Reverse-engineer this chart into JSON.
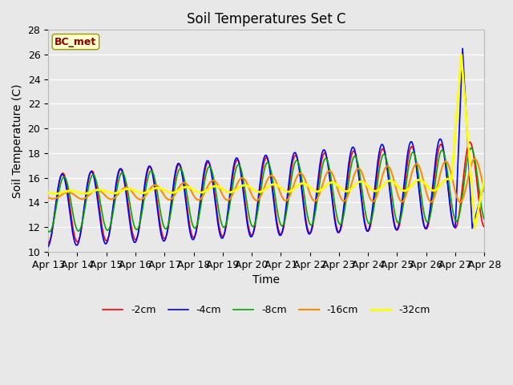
{
  "title": "Soil Temperatures Set C",
  "xlabel": "Time",
  "ylabel": "Soil Temperature (C)",
  "ylim": [
    10,
    28
  ],
  "xlim": [
    0,
    360
  ],
  "annotation": "BC_met",
  "annotation_color": "#8B0000",
  "annotation_bg": "#FFFFCC",
  "background_color": "#E8E8E8",
  "plot_bg": "#E8E8E8",
  "grid_color": "#FFFFFF",
  "series": [
    "-2cm",
    "-4cm",
    "-8cm",
    "-16cm",
    "-32cm"
  ],
  "colors": [
    "#FF0000",
    "#0000FF",
    "#00AA00",
    "#FF8C00",
    "#FFFF00"
  ],
  "linewidths": [
    1.2,
    1.2,
    1.2,
    1.5,
    2.0
  ],
  "xtick_labels": [
    "Apr 13",
    "Apr 14",
    "Apr 15",
    "Apr 16",
    "Apr 17",
    "Apr 18",
    "Apr 19",
    "Apr 20",
    "Apr 21",
    "Apr 22",
    "Apr 23",
    "Apr 24",
    "Apr 25",
    "Apr 26",
    "Apr 27",
    "Apr 28"
  ],
  "xtick_positions": [
    0,
    24,
    48,
    72,
    96,
    120,
    144,
    168,
    192,
    216,
    240,
    264,
    288,
    312,
    336,
    360
  ]
}
